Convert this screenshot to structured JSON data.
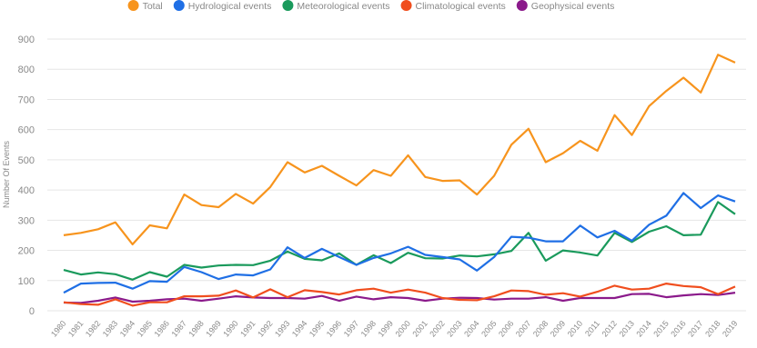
{
  "chart_data": {
    "type": "line",
    "y_label": "Number Of Events",
    "categories": [
      "1980",
      "1981",
      "1982",
      "1983",
      "1984",
      "1985",
      "1986",
      "1987",
      "1988",
      "1989",
      "1990",
      "1991",
      "1992",
      "1993",
      "1994",
      "1995",
      "1996",
      "1997",
      "1998",
      "1999",
      "2000",
      "2001",
      "2002",
      "2003",
      "2004",
      "2005",
      "2006",
      "2007",
      "2008",
      "2009",
      "2010",
      "2011",
      "2012",
      "2013",
      "2014",
      "2015",
      "2016",
      "2017",
      "2018",
      "2019"
    ],
    "series": [
      {
        "name": "Total",
        "color": "#f7941d",
        "values": [
          250,
          258,
          270,
          293,
          220,
          283,
          273,
          385,
          350,
          343,
          387,
          355,
          410,
          492,
          458,
          480,
          447,
          415,
          466,
          447,
          515,
          443,
          430,
          432,
          385,
          447,
          550,
          603,
          492,
          522,
          563,
          530,
          648,
          582,
          678,
          728,
          772,
          723,
          848,
          822
        ]
      },
      {
        "name": "Hydrological events",
        "color": "#1f6fe5",
        "values": [
          60,
          90,
          92,
          93,
          73,
          98,
          96,
          145,
          128,
          105,
          120,
          117,
          137,
          210,
          175,
          205,
          178,
          152,
          175,
          190,
          212,
          185,
          178,
          170,
          133,
          178,
          245,
          242,
          230,
          230,
          282,
          243,
          265,
          232,
          285,
          315,
          390,
          340,
          382,
          362
        ]
      },
      {
        "name": "Meteorological events",
        "color": "#1a9a5c",
        "values": [
          135,
          120,
          127,
          121,
          103,
          128,
          113,
          152,
          143,
          150,
          152,
          151,
          166,
          196,
          172,
          167,
          190,
          152,
          184,
          158,
          192,
          174,
          173,
          183,
          180,
          187,
          198,
          258,
          166,
          200,
          193,
          183,
          258,
          228,
          262,
          280,
          250,
          252,
          360,
          320
        ]
      },
      {
        "name": "Climatological events",
        "color": "#f04e1e",
        "values": [
          28,
          22,
          20,
          38,
          17,
          28,
          28,
          48,
          48,
          50,
          67,
          44,
          71,
          45,
          68,
          62,
          54,
          68,
          73,
          60,
          70,
          60,
          42,
          36,
          35,
          48,
          67,
          65,
          53,
          58,
          47,
          63,
          83,
          70,
          73,
          90,
          82,
          78,
          55,
          80
        ]
      },
      {
        "name": "Geophysical events",
        "color": "#8b1a8b",
        "values": [
          27,
          26,
          33,
          44,
          30,
          33,
          38,
          40,
          33,
          40,
          48,
          44,
          42,
          42,
          40,
          49,
          33,
          47,
          38,
          45,
          42,
          33,
          40,
          43,
          42,
          37,
          40,
          40,
          45,
          33,
          42,
          42,
          42,
          55,
          56,
          45,
          51,
          55,
          52,
          60
        ]
      }
    ],
    "ylim": [
      0,
      900
    ],
    "yticks": [
      0,
      100,
      200,
      300,
      400,
      500,
      600,
      700,
      800,
      900
    ],
    "grid": true
  }
}
